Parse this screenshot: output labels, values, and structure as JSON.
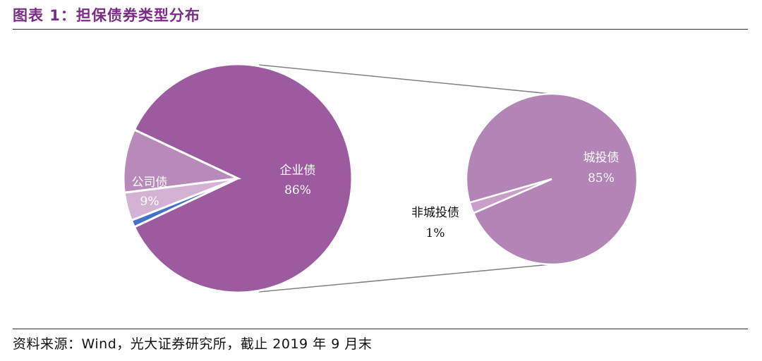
{
  "title": "图表 1：担保债券类型分布",
  "source": "资料来源：Wind，光大证券研究所，截止 2019 年 9 月末",
  "colors": {
    "title": "#7B2C86",
    "main_pie": "#9C5A9F",
    "secondary_pie": "#B384B6",
    "light_slice": "#D4B2D4",
    "blue_slice": "#4472C4",
    "connector": "#808080"
  },
  "chart_data": {
    "type": "pie",
    "title": "",
    "main_pie": {
      "slices": [
        {
          "name": "企业债",
          "value": 86,
          "label": "86%",
          "color": "#9C5A9F"
        },
        {
          "name": "公司债",
          "value": 9,
          "label": "9%",
          "color": "#B88AB9"
        },
        {
          "name": "",
          "value": 4,
          "label": "",
          "color": "#D4B2D4"
        },
        {
          "name": "",
          "value": 1,
          "label": "",
          "color": "#4472C4"
        }
      ]
    },
    "secondary_pie": {
      "slices": [
        {
          "name": "城投债",
          "value": 85,
          "label": "85%",
          "color": "#B384B6"
        },
        {
          "name": "非城投债",
          "value": 1,
          "label": "1%",
          "color": "#C79FC8"
        }
      ]
    },
    "legend": "none"
  }
}
